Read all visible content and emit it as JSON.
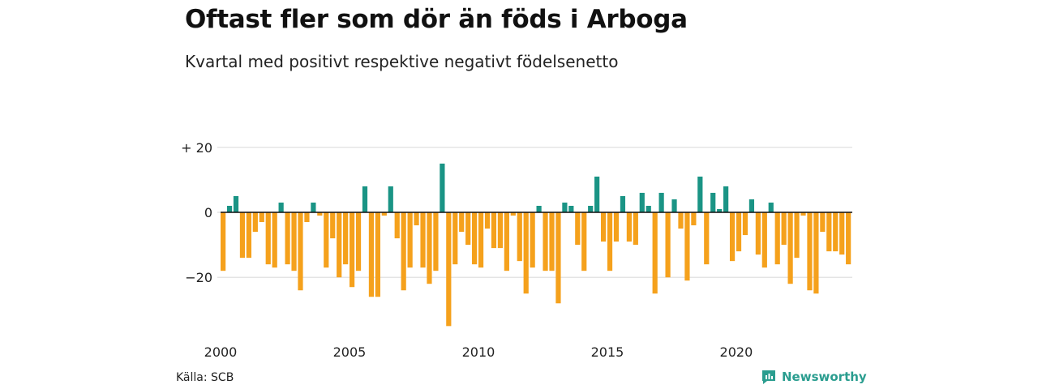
{
  "header": {
    "title": "Oftast fler som dör än föds i Arboga",
    "subtitle": "Kvartal med positivt respektive negativt födelsenetto"
  },
  "footer": {
    "source": "Källa: SCB",
    "brand": "Newsworthy"
  },
  "colors": {
    "positive": "#1a9485",
    "negative": "#f5a11c",
    "grid": "#dcdcdc",
    "brand": "#2a9d8f"
  },
  "chart_data": {
    "type": "bar",
    "title": "",
    "xlabel": "",
    "ylabel": "",
    "ylim": [
      -35,
      20
    ],
    "yticks": [
      {
        "value": 20,
        "label": "+ 20"
      },
      {
        "value": 0,
        "label": "0"
      },
      {
        "value": -20,
        "label": "−20"
      }
    ],
    "xticks": [
      "2000",
      "2005",
      "2010",
      "2015",
      "2020"
    ],
    "grid": true,
    "start_quarter": "2000 Q1",
    "values": [
      -18,
      2,
      5,
      -14,
      -14,
      -6,
      -3,
      -16,
      -17,
      3,
      -16,
      -18,
      -24,
      -3,
      3,
      -1,
      -17,
      -8,
      -20,
      -16,
      -23,
      -18,
      8,
      -26,
      -26,
      -1,
      8,
      -8,
      -24,
      -17,
      -4,
      -17,
      -22,
      -18,
      15,
      -35,
      -16,
      -6,
      -10,
      -16,
      -17,
      -5,
      -11,
      -11,
      -18,
      -1,
      -15,
      -25,
      -17,
      2,
      -18,
      -18,
      -28,
      3,
      2,
      -10,
      -18,
      2,
      11,
      -9,
      -18,
      -9,
      5,
      -9,
      -10,
      6,
      2,
      -25,
      6,
      -20,
      4,
      -5,
      -21,
      -4,
      11,
      -16,
      6,
      1,
      8,
      -15,
      -12,
      -7,
      4,
      -13,
      -17,
      3,
      -16,
      -10,
      -22,
      -14,
      -1,
      -24,
      -25,
      -6,
      -12,
      -12,
      -13,
      -16
    ]
  }
}
